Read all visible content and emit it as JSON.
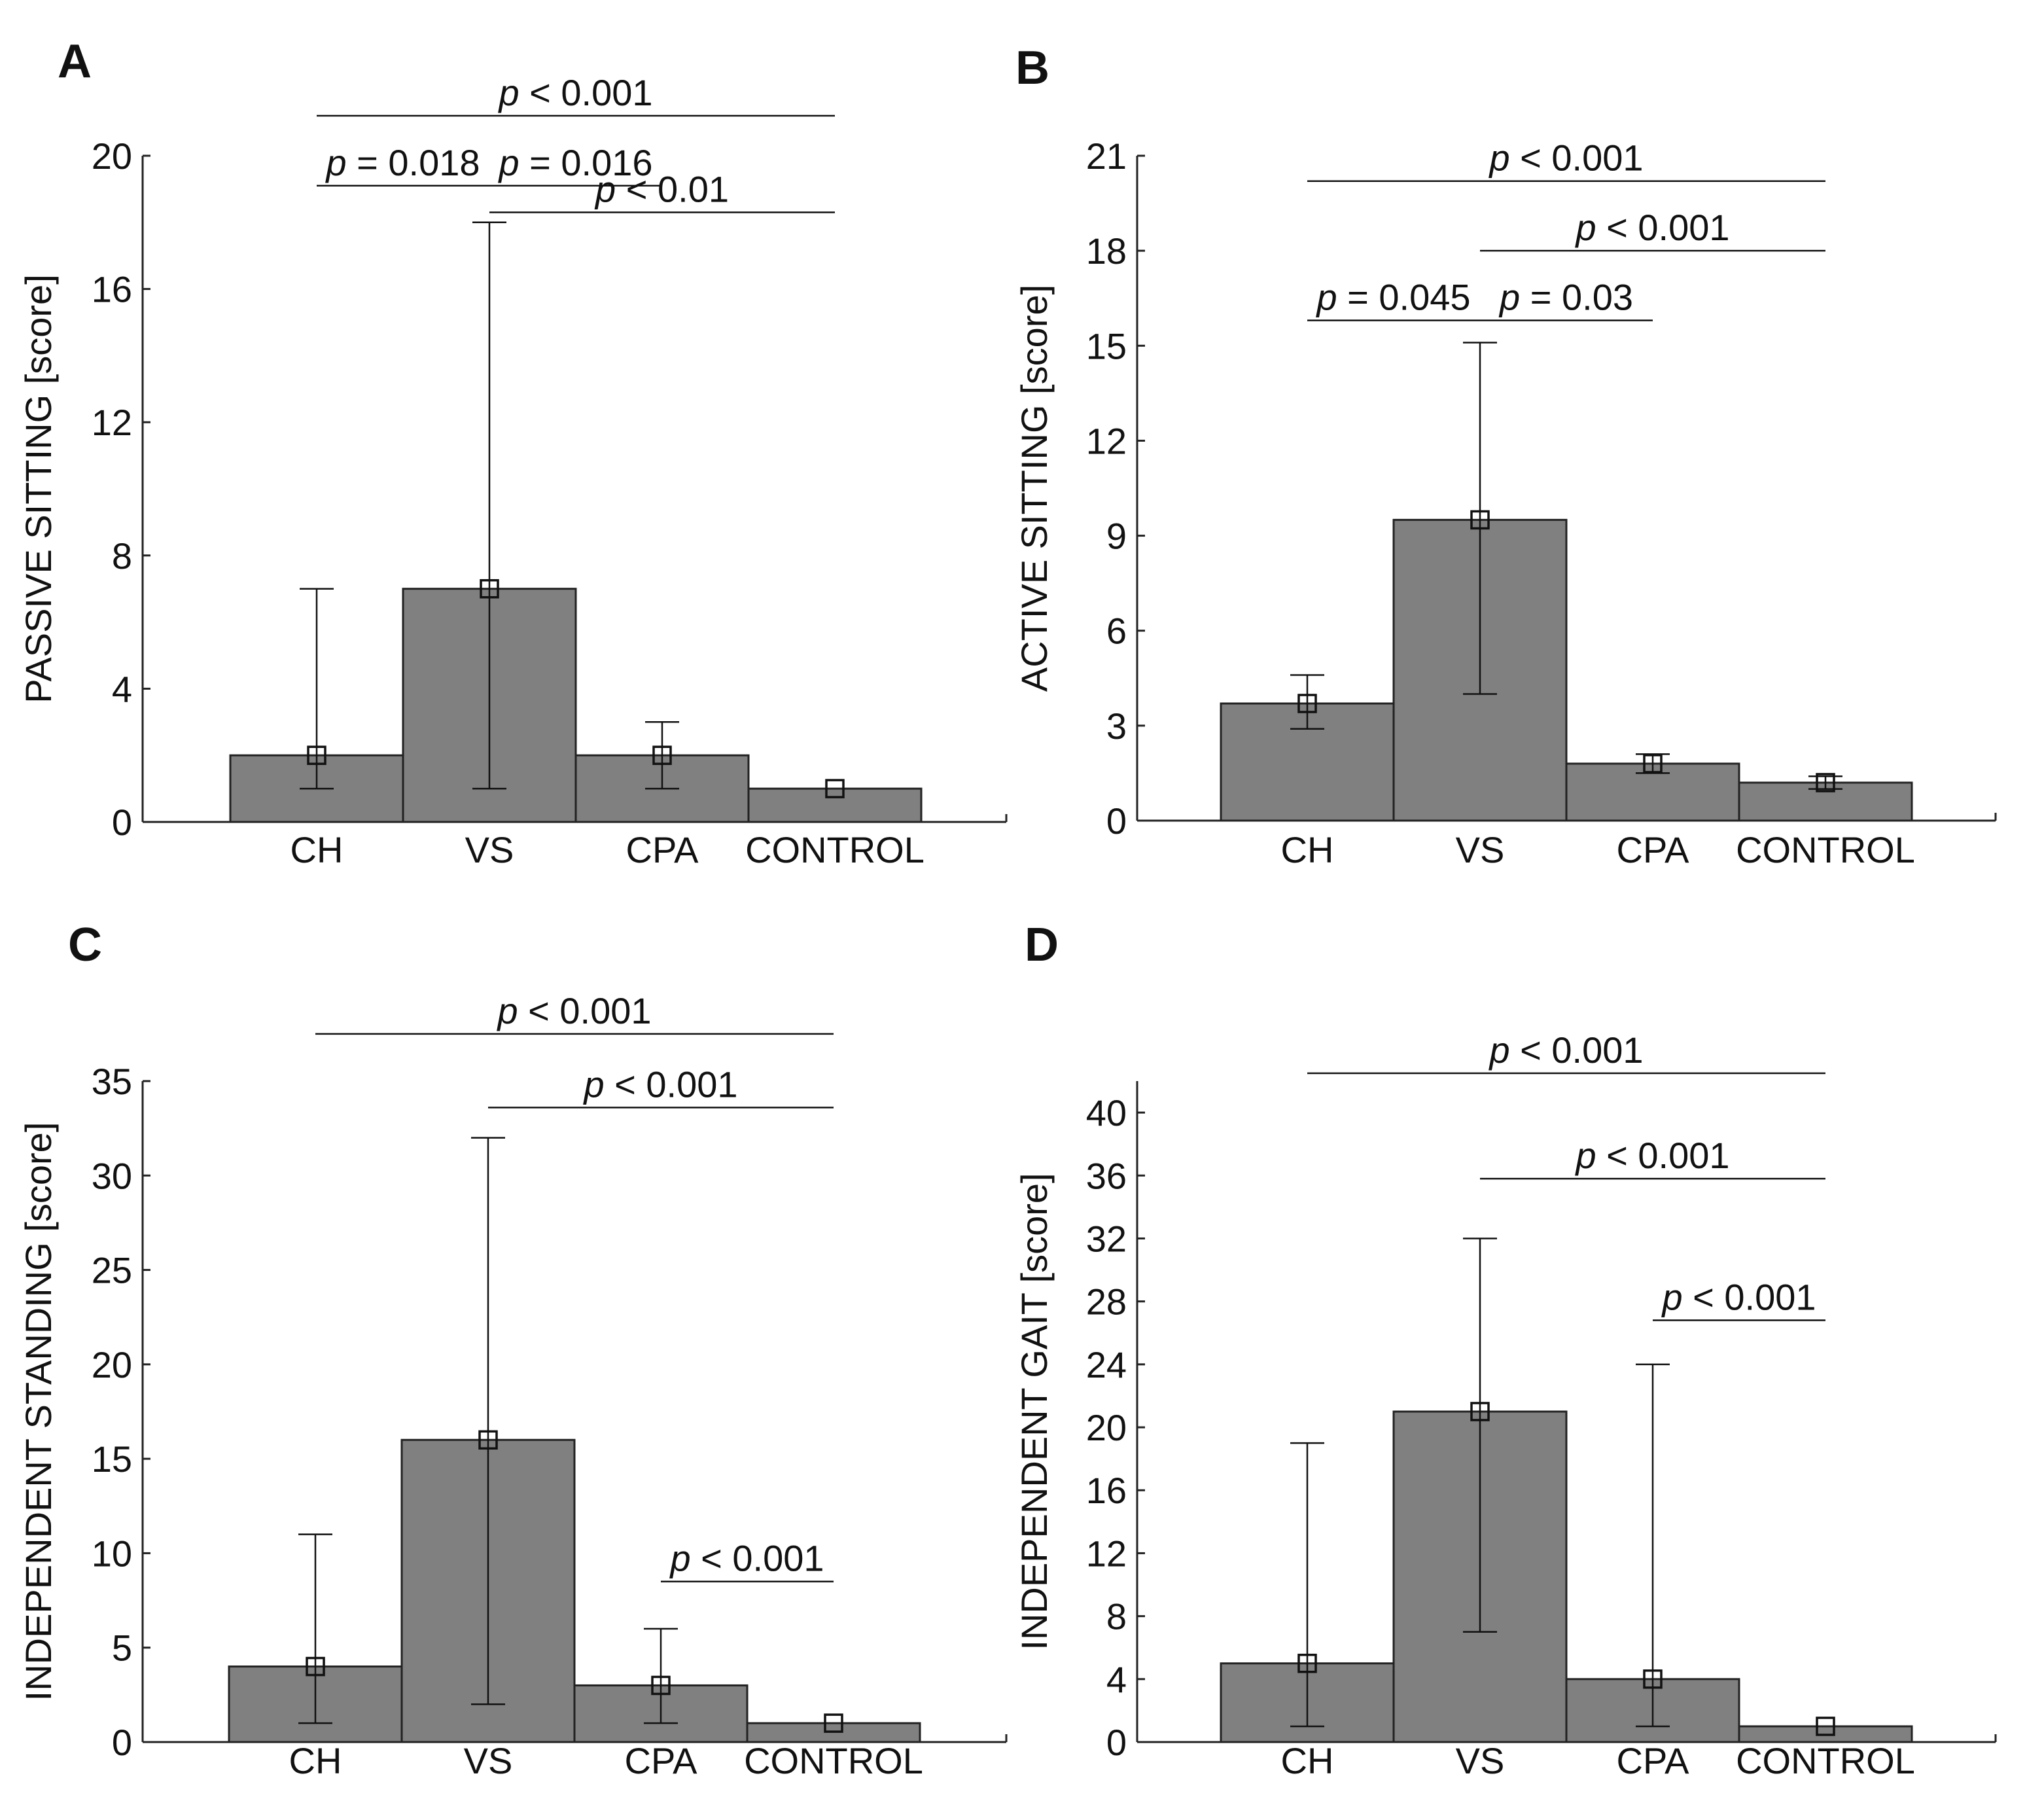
{
  "chart_data": [
    {
      "panel": "A",
      "type": "bar",
      "categories": [
        "CH",
        "VS",
        "CPA",
        "CONTROL"
      ],
      "values": [
        2,
        7,
        2,
        1
      ],
      "error_low": [
        1,
        1,
        1,
        1
      ],
      "error_high": [
        7,
        18,
        3,
        1
      ],
      "ylabel": "PASSIVE SITTING [score]",
      "ylim": [
        0,
        20
      ],
      "yticks": [
        0,
        4,
        8,
        12,
        16,
        20
      ],
      "significance": [
        {
          "from": "CH",
          "to": "CONTROL",
          "p": "p",
          "rest": " < 0.001",
          "y": 21.2
        },
        {
          "from": "CH",
          "to": "VS",
          "p": "p",
          "rest": " = 0.018",
          "y": 19.1
        },
        {
          "from": "VS",
          "to": "CPA",
          "p": "p",
          "rest": " = 0.016",
          "y": 19.1
        },
        {
          "from": "VS",
          "to": "CONTROL",
          "p": "p",
          "rest": " < 0.01",
          "y": 18.3
        }
      ],
      "colors": {
        "bar": "#808080",
        "bar_edge": "#222222",
        "axis": "#222222"
      }
    },
    {
      "panel": "B",
      "type": "bar",
      "categories": [
        "CH",
        "VS",
        "CPA",
        "CONTROL"
      ],
      "values": [
        3.7,
        9.5,
        1.8,
        1.2
      ],
      "error_low": [
        2.9,
        4.0,
        1.5,
        1.0
      ],
      "error_high": [
        4.6,
        15.1,
        2.1,
        1.4
      ],
      "ylabel": "ACTIVE SITTING [score]",
      "ylim": [
        0,
        21
      ],
      "yticks": [
        0,
        3,
        6,
        9,
        12,
        15,
        18,
        21
      ],
      "significance": [
        {
          "from": "CH",
          "to": "CONTROL",
          "p": "p",
          "rest": " < 0.001",
          "y": 20.2
        },
        {
          "from": "VS",
          "to": "CONTROL",
          "p": "p",
          "rest": " < 0.001",
          "y": 18.0
        },
        {
          "from": "CH",
          "to": "VS",
          "p": "p",
          "rest": " = 0.045",
          "y": 15.8
        },
        {
          "from": "VS",
          "to": "CPA",
          "p": "p",
          "rest": " = 0.03",
          "y": 15.8
        }
      ],
      "colors": {
        "bar": "#808080",
        "bar_edge": "#222222",
        "axis": "#222222"
      }
    },
    {
      "panel": "C",
      "type": "bar",
      "categories": [
        "CH",
        "VS",
        "CPA",
        "CONTROL"
      ],
      "values": [
        4,
        16,
        3,
        1
      ],
      "error_low": [
        1,
        2,
        1,
        1
      ],
      "error_high": [
        11,
        32,
        6,
        1
      ],
      "ylabel": "INDEPENDENT STANDING [score]",
      "ylim": [
        0,
        35
      ],
      "yticks": [
        0,
        5,
        10,
        15,
        20,
        25,
        30,
        35
      ],
      "significance": [
        {
          "from": "CH",
          "to": "CONTROL",
          "p": "p",
          "rest": " < 0.001",
          "y": 37.5
        },
        {
          "from": "VS",
          "to": "CONTROL",
          "p": "p",
          "rest": " < 0.001",
          "y": 33.6
        },
        {
          "from": "CPA",
          "to": "CONTROL",
          "p": "p",
          "rest": " < 0.001",
          "y": 8.5
        }
      ],
      "colors": {
        "bar": "#808080",
        "bar_edge": "#222222",
        "axis": "#222222"
      }
    },
    {
      "panel": "D",
      "type": "bar",
      "categories": [
        "CH",
        "VS",
        "CPA",
        "CONTROL"
      ],
      "values": [
        5,
        21,
        4,
        1
      ],
      "error_low": [
        1,
        7,
        1,
        1
      ],
      "error_high": [
        19,
        32,
        24,
        1
      ],
      "ylabel": "INDEPENDENT GAIT [score]",
      "ylim": [
        0,
        42
      ],
      "yticks": [
        0,
        4,
        8,
        12,
        16,
        20,
        24,
        28,
        32,
        36,
        40
      ],
      "significance": [
        {
          "from": "CH",
          "to": "CONTROL",
          "p": "p",
          "rest": " < 0.001",
          "y": 42.5
        },
        {
          "from": "VS",
          "to": "CONTROL",
          "p": "p",
          "rest": " < 0.001",
          "y": 35.8
        },
        {
          "from": "CPA",
          "to": "CONTROL",
          "p": "p",
          "rest": " < 0.001",
          "y": 26.8
        }
      ],
      "colors": {
        "bar": "#808080",
        "bar_edge": "#222222",
        "axis": "#222222"
      }
    }
  ]
}
